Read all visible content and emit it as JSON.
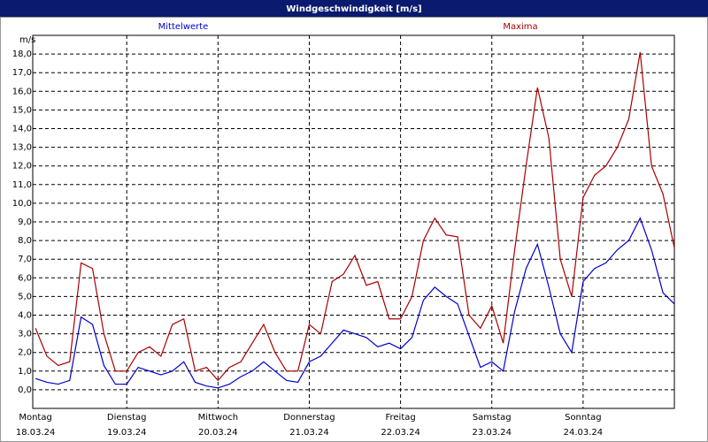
{
  "window_title": "Windgeschwindigkeit [m/s]",
  "chart_data": {
    "type": "line",
    "y_unit": "m/s",
    "x": [
      0,
      0.125,
      0.25,
      0.375,
      0.5,
      0.625,
      0.75,
      0.875,
      1,
      1.125,
      1.25,
      1.375,
      1.5,
      1.625,
      1.75,
      1.875,
      2,
      2.125,
      2.25,
      2.375,
      2.5,
      2.625,
      2.75,
      2.875,
      3,
      3.125,
      3.25,
      3.375,
      3.5,
      3.625,
      3.75,
      3.875,
      4,
      4.125,
      4.25,
      4.375,
      4.5,
      4.625,
      4.75,
      4.875,
      5,
      5.125,
      5.25,
      5.375,
      5.5,
      5.625,
      5.75,
      5.875,
      6,
      6.125,
      6.25,
      6.375,
      6.5,
      6.625,
      6.75,
      6.875,
      7
    ],
    "series": [
      {
        "name": "Mittelwerte",
        "color": "#0000cc",
        "values": [
          0.6,
          0.4,
          0.3,
          0.5,
          3.9,
          3.5,
          1.3,
          0.3,
          0.3,
          1.2,
          1.0,
          0.8,
          1.0,
          1.5,
          0.4,
          0.2,
          0.1,
          0.3,
          0.7,
          1.0,
          1.5,
          1.0,
          0.5,
          0.4,
          1.5,
          1.8,
          2.5,
          3.2,
          3.0,
          2.8,
          2.3,
          2.5,
          2.2,
          2.8,
          4.8,
          5.5,
          5.0,
          4.6,
          2.9,
          1.2,
          1.5,
          1.0,
          4.2,
          6.5,
          7.8,
          5.5,
          3.0,
          2.0,
          5.8,
          6.5,
          6.8,
          7.5,
          8.0,
          9.2,
          7.5,
          5.2,
          4.6
        ]
      },
      {
        "name": "Maxima",
        "color": "#aa0000",
        "values": [
          3.3,
          1.8,
          1.3,
          1.5,
          6.8,
          6.5,
          3.0,
          1.0,
          1.0,
          2.0,
          2.3,
          1.8,
          3.5,
          3.8,
          1.0,
          1.2,
          0.5,
          1.2,
          1.5,
          2.5,
          3.5,
          2.0,
          1.0,
          1.0,
          3.5,
          3.0,
          5.8,
          6.2,
          7.2,
          5.6,
          5.8,
          3.8,
          3.8,
          5.0,
          8.0,
          9.2,
          8.3,
          8.2,
          4.0,
          3.3,
          4.5,
          2.5,
          7.5,
          12.0,
          16.2,
          13.5,
          7.0,
          5.0,
          10.3,
          11.5,
          12.0,
          13.0,
          14.5,
          18.1,
          12.0,
          10.5,
          7.6
        ]
      }
    ],
    "xlim": [
      -0.03,
      7.0
    ],
    "xticks": [
      {
        "value": 0,
        "label": "Montag"
      },
      {
        "value": 1,
        "label": "Dienstag"
      },
      {
        "value": 2,
        "label": "Mittwoch"
      },
      {
        "value": 3,
        "label": "Donnerstag"
      },
      {
        "value": 4,
        "label": "Freitag"
      },
      {
        "value": 5,
        "label": "Samstag"
      },
      {
        "value": 6,
        "label": "Sonntag"
      }
    ],
    "xtick_dates": [
      "18.03.24",
      "19.03.24",
      "20.03.24",
      "21.03.24",
      "22.03.24",
      "23.03.24",
      "24.03.24"
    ],
    "ylim": [
      -1,
      19
    ],
    "yticks": [
      {
        "value": 0,
        "label": "0,0"
      },
      {
        "value": 1,
        "label": "1,0"
      },
      {
        "value": 2,
        "label": "2,0"
      },
      {
        "value": 3,
        "label": "3,0"
      },
      {
        "value": 4,
        "label": "4,0"
      },
      {
        "value": 5,
        "label": "5,0"
      },
      {
        "value": 6,
        "label": "6,0"
      },
      {
        "value": 7,
        "label": "7,0"
      },
      {
        "value": 8,
        "label": "8,0"
      },
      {
        "value": 9,
        "label": "9,0"
      },
      {
        "value": 10,
        "label": "10,0"
      },
      {
        "value": 11,
        "label": "11,0"
      },
      {
        "value": 12,
        "label": "12,0"
      },
      {
        "value": 13,
        "label": "13,0"
      },
      {
        "value": 14,
        "label": "14,0"
      },
      {
        "value": 15,
        "label": "15,0"
      },
      {
        "value": 16,
        "label": "16,0"
      },
      {
        "value": 17,
        "label": "17,0"
      },
      {
        "value": 18,
        "label": "18,0"
      }
    ],
    "grid": true
  }
}
